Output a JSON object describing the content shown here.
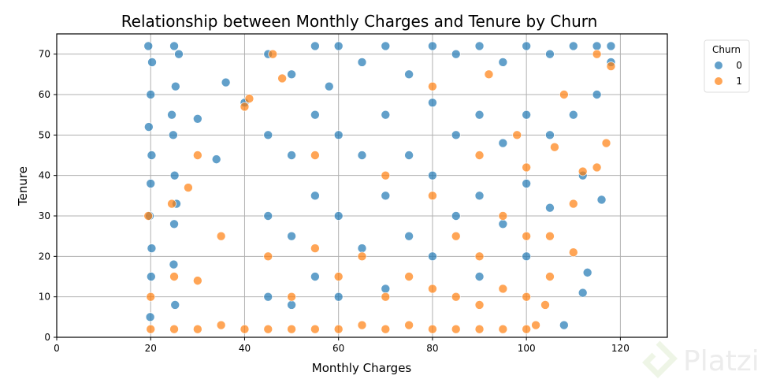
{
  "chart_data": {
    "type": "scatter",
    "title": "Relationship between Monthly Charges and Tenure by Churn",
    "xlabel": "Monthly Charges",
    "ylabel": "Tenure",
    "xlim": [
      0,
      130
    ],
    "ylim": [
      0,
      75
    ],
    "xticks": [
      "0",
      "20",
      "40",
      "60",
      "80",
      "100",
      "120"
    ],
    "xtick_values": [
      0,
      20,
      40,
      60,
      80,
      100,
      120
    ],
    "yticks": [
      "0",
      "10",
      "20",
      "30",
      "40",
      "50",
      "60",
      "70"
    ],
    "ytick_values": [
      0,
      10,
      20,
      30,
      40,
      50,
      60,
      70
    ],
    "grid": true,
    "legend": {
      "title": "Churn",
      "placement": "outside-top-right",
      "entries": [
        "0",
        "1"
      ]
    },
    "colors": {
      "0": "#1f77b4",
      "1": "#ff7f0e"
    },
    "series": [
      {
        "name": "0",
        "points": [
          [
            19.5,
            72
          ],
          [
            20,
            60
          ],
          [
            20.2,
            45
          ],
          [
            19.8,
            30
          ],
          [
            20.1,
            15
          ],
          [
            19.9,
            5
          ],
          [
            20.3,
            68
          ],
          [
            19.6,
            52
          ],
          [
            20,
            38
          ],
          [
            20.2,
            22
          ],
          [
            25,
            72
          ],
          [
            25.3,
            62
          ],
          [
            24.8,
            50
          ],
          [
            25.1,
            40
          ],
          [
            25,
            28
          ],
          [
            24.9,
            18
          ],
          [
            25.2,
            8
          ],
          [
            26,
            70
          ],
          [
            24.5,
            55
          ],
          [
            25.5,
            33
          ],
          [
            30,
            54
          ],
          [
            34,
            44
          ],
          [
            36,
            63
          ],
          [
            40,
            58
          ],
          [
            45,
            70
          ],
          [
            45,
            50
          ],
          [
            45,
            30
          ],
          [
            45,
            10
          ],
          [
            50,
            65
          ],
          [
            50,
            45
          ],
          [
            50,
            25
          ],
          [
            50,
            8
          ],
          [
            55,
            72
          ],
          [
            55,
            55
          ],
          [
            55,
            35
          ],
          [
            55,
            15
          ],
          [
            58,
            62
          ],
          [
            60,
            72
          ],
          [
            60,
            50
          ],
          [
            60,
            30
          ],
          [
            60,
            10
          ],
          [
            65,
            68
          ],
          [
            65,
            45
          ],
          [
            65,
            22
          ],
          [
            70,
            72
          ],
          [
            70,
            55
          ],
          [
            70,
            35
          ],
          [
            70,
            12
          ],
          [
            75,
            65
          ],
          [
            75,
            45
          ],
          [
            75,
            25
          ],
          [
            80,
            72
          ],
          [
            80,
            58
          ],
          [
            80,
            40
          ],
          [
            80,
            20
          ],
          [
            85,
            70
          ],
          [
            85,
            50
          ],
          [
            85,
            30
          ],
          [
            90,
            72
          ],
          [
            90,
            55
          ],
          [
            90,
            35
          ],
          [
            90,
            15
          ],
          [
            95,
            68
          ],
          [
            95,
            48
          ],
          [
            95,
            28
          ],
          [
            100,
            72
          ],
          [
            100,
            55
          ],
          [
            100,
            38
          ],
          [
            100,
            20
          ],
          [
            105,
            70
          ],
          [
            105,
            50
          ],
          [
            105,
            32
          ],
          [
            108,
            3
          ],
          [
            110,
            72
          ],
          [
            110,
            55
          ],
          [
            112,
            40
          ],
          [
            115,
            72
          ],
          [
            116,
            34
          ],
          [
            115,
            60
          ],
          [
            118,
            68
          ],
          [
            118,
            72
          ],
          [
            113,
            16
          ],
          [
            112,
            11
          ]
        ]
      },
      {
        "name": "1",
        "points": [
          [
            20,
            2
          ],
          [
            20,
            10
          ],
          [
            19.5,
            30
          ],
          [
            25,
            2
          ],
          [
            25,
            15
          ],
          [
            24.5,
            33
          ],
          [
            28,
            37
          ],
          [
            30,
            2
          ],
          [
            30,
            14
          ],
          [
            30,
            45
          ],
          [
            35,
            3
          ],
          [
            35,
            25
          ],
          [
            40,
            2
          ],
          [
            40,
            57
          ],
          [
            41,
            59
          ],
          [
            45,
            2
          ],
          [
            45,
            20
          ],
          [
            46,
            70
          ],
          [
            48,
            64
          ],
          [
            50,
            2
          ],
          [
            50,
            10
          ],
          [
            55,
            2
          ],
          [
            55,
            22
          ],
          [
            55,
            45
          ],
          [
            60,
            2
          ],
          [
            60,
            15
          ],
          [
            65,
            3
          ],
          [
            65,
            20
          ],
          [
            70,
            2
          ],
          [
            70,
            10
          ],
          [
            70,
            40
          ],
          [
            75,
            3
          ],
          [
            75,
            15
          ],
          [
            80,
            2
          ],
          [
            80,
            12
          ],
          [
            80,
            35
          ],
          [
            80,
            62
          ],
          [
            85,
            2
          ],
          [
            85,
            10
          ],
          [
            85,
            25
          ],
          [
            90,
            2
          ],
          [
            90,
            8
          ],
          [
            90,
            20
          ],
          [
            90,
            45
          ],
          [
            95,
            2
          ],
          [
            95,
            12
          ],
          [
            95,
            30
          ],
          [
            100,
            2
          ],
          [
            100,
            10
          ],
          [
            100,
            25
          ],
          [
            100,
            42
          ],
          [
            102,
            3
          ],
          [
            104,
            8
          ],
          [
            105,
            15
          ],
          [
            106,
            47
          ],
          [
            108,
            60
          ],
          [
            110,
            21
          ],
          [
            112,
            41
          ],
          [
            115,
            42
          ],
          [
            117,
            48
          ],
          [
            118,
            67
          ],
          [
            115,
            70
          ],
          [
            110,
            33
          ],
          [
            105,
            25
          ],
          [
            98,
            50
          ],
          [
            92,
            65
          ]
        ]
      }
    ]
  },
  "watermark": "Platzi"
}
